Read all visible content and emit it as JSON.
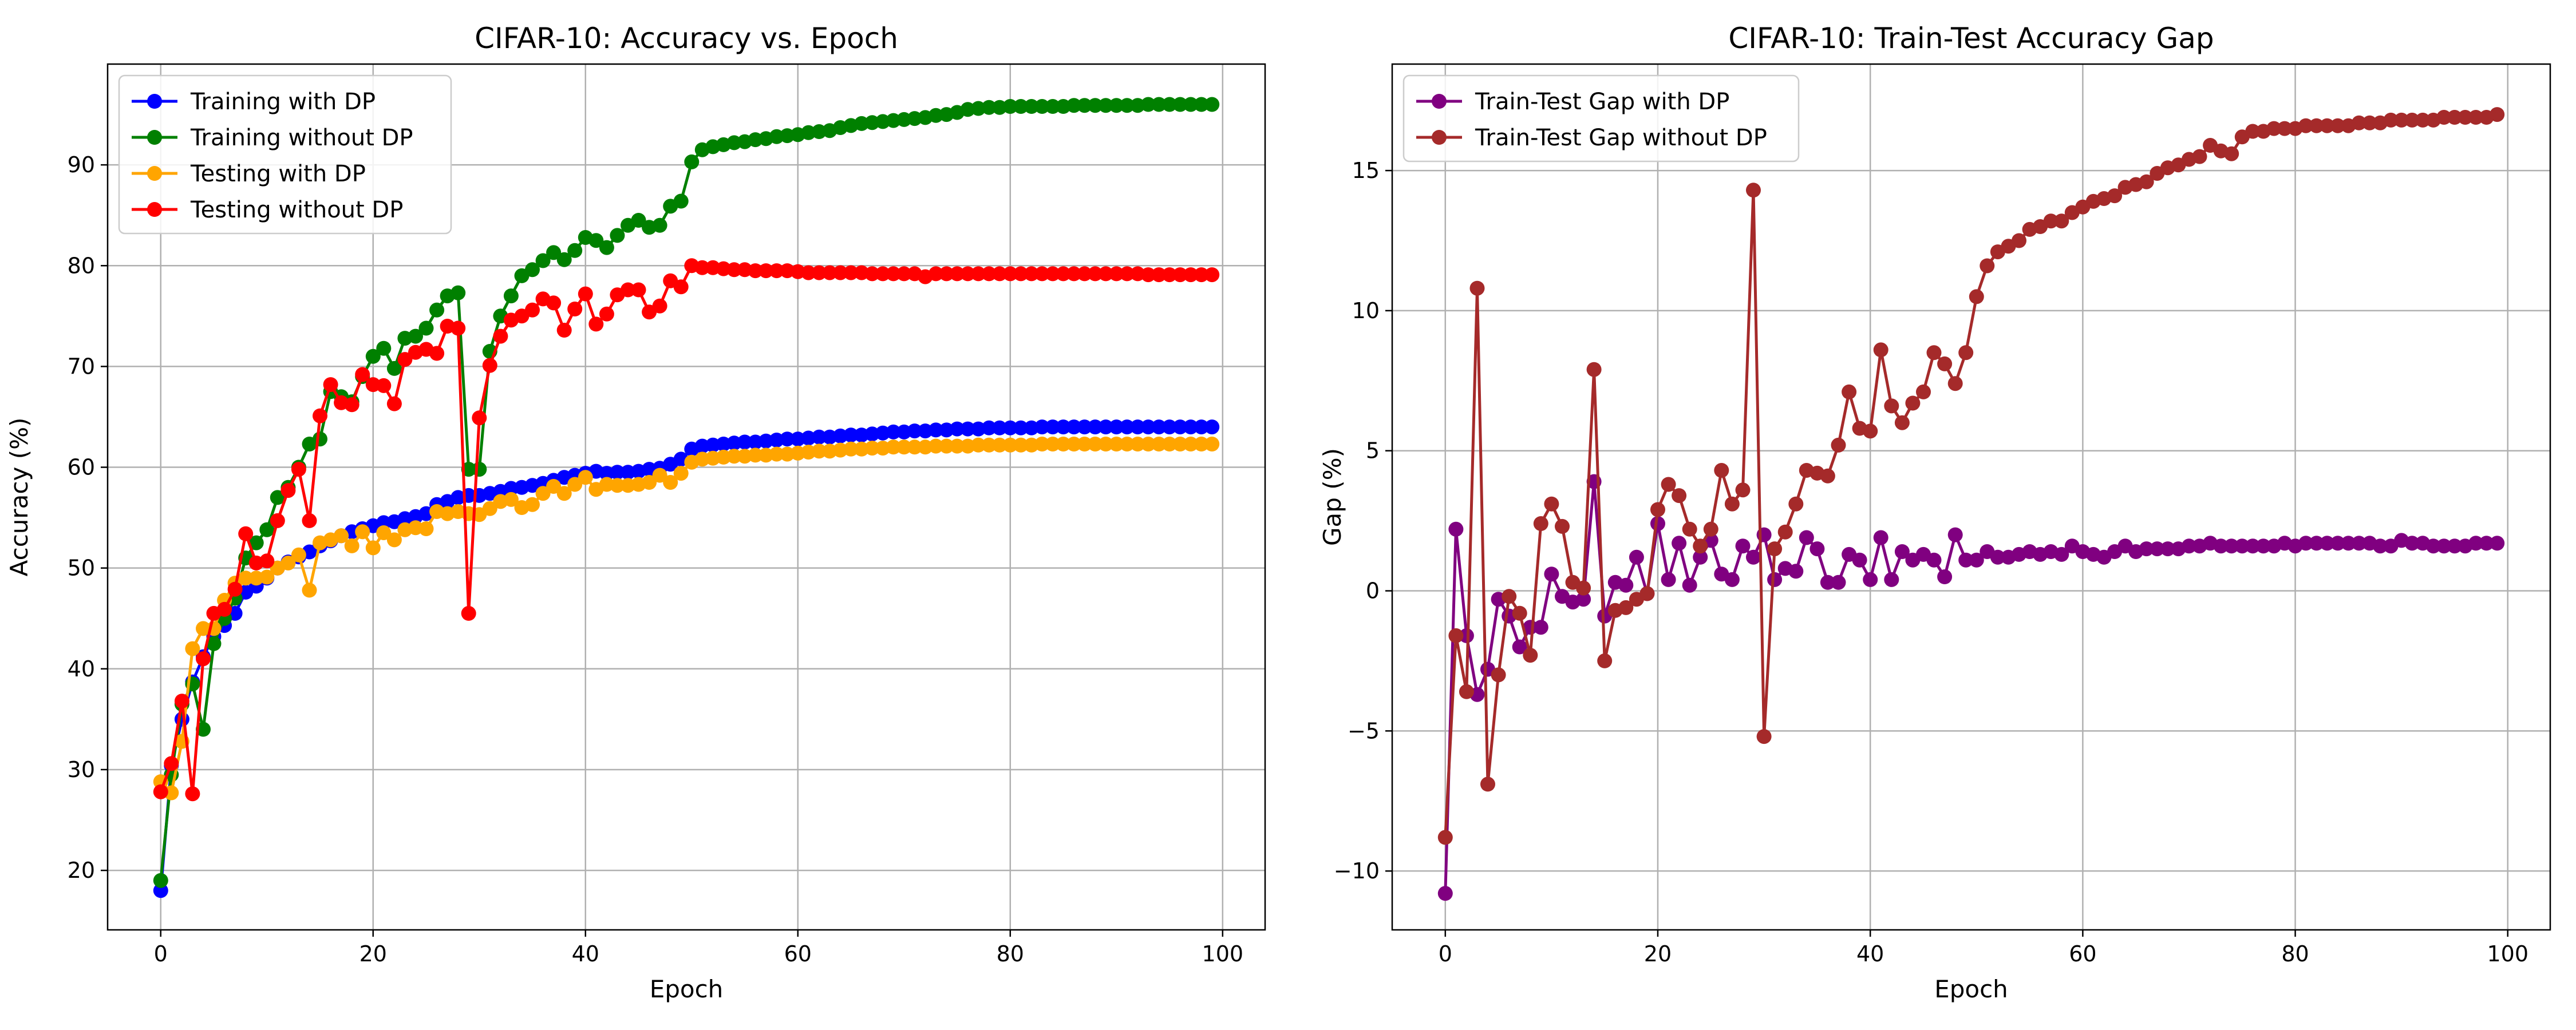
{
  "chart_data": [
    {
      "type": "line",
      "title": "CIFAR-10: Accuracy vs. Epoch",
      "xlabel": "Epoch",
      "ylabel": "Accuracy (%)",
      "xlim": [
        -5,
        104
      ],
      "ylim": [
        14.1,
        100
      ],
      "xticks": [
        0,
        20,
        40,
        60,
        80,
        100
      ],
      "yticks": [
        20,
        30,
        40,
        50,
        60,
        70,
        80,
        90
      ],
      "grid": true,
      "legend_position": "top-left",
      "marker": "circle",
      "series": [
        {
          "name": "Training with DP",
          "color": "#0000ff",
          "values": [
            18.0,
            30.4,
            35.0,
            38.7,
            41.2,
            43.2,
            44.3,
            45.5,
            47.6,
            48.2,
            49.0,
            50.0,
            50.6,
            51.1,
            51.6,
            52.2,
            52.7,
            53.2,
            53.6,
            53.9,
            54.2,
            54.5,
            54.6,
            54.9,
            55.1,
            55.4,
            56.3,
            56.6,
            57.0,
            57.2,
            57.2,
            57.4,
            57.6,
            57.9,
            58.0,
            58.2,
            58.4,
            58.7,
            59.0,
            59.2,
            59.4,
            59.6,
            59.4,
            59.5,
            59.5,
            59.6,
            59.8,
            59.9,
            60.3,
            60.8,
            61.8,
            62.1,
            62.2,
            62.3,
            62.4,
            62.5,
            62.5,
            62.6,
            62.7,
            62.8,
            62.8,
            62.9,
            63.0,
            63.0,
            63.1,
            63.2,
            63.2,
            63.3,
            63.4,
            63.5,
            63.5,
            63.6,
            63.6,
            63.7,
            63.7,
            63.8,
            63.8,
            63.8,
            63.9,
            63.9,
            63.9,
            63.9,
            63.9,
            64.0,
            64.0,
            64.0,
            64.0,
            64.0,
            64.0,
            64.0,
            64.0,
            64.0,
            64.0,
            64.0,
            64.0,
            64.0,
            64.0,
            64.0,
            64.0,
            64.0
          ]
        },
        {
          "name": "Training without DP",
          "color": "#008000",
          "values": [
            19.0,
            29.5,
            36.5,
            38.5,
            34.0,
            42.5,
            45.0,
            47.0,
            51.0,
            52.5,
            53.8,
            57.0,
            58.0,
            60.0,
            62.3,
            62.8,
            67.5,
            67.0,
            66.5,
            69.0,
            71.0,
            71.8,
            69.8,
            72.8,
            73.0,
            73.8,
            75.6,
            77.0,
            77.3,
            59.8,
            59.8,
            71.5,
            75.0,
            77.0,
            79.0,
            79.6,
            80.5,
            81.3,
            80.6,
            81.5,
            82.8,
            82.5,
            81.8,
            83.0,
            84.0,
            84.5,
            83.8,
            84.0,
            85.9,
            86.4,
            90.3,
            91.5,
            91.8,
            92.0,
            92.2,
            92.3,
            92.5,
            92.6,
            92.8,
            92.9,
            93.0,
            93.2,
            93.3,
            93.4,
            93.7,
            93.9,
            94.1,
            94.2,
            94.3,
            94.4,
            94.5,
            94.6,
            94.7,
            94.9,
            95.0,
            95.2,
            95.5,
            95.6,
            95.7,
            95.7,
            95.8,
            95.8,
            95.8,
            95.8,
            95.8,
            95.8,
            95.9,
            95.9,
            95.9,
            95.9,
            95.9,
            95.9,
            95.9,
            96.0,
            96.0,
            96.0,
            96.0,
            96.0,
            96.0,
            96.0
          ]
        },
        {
          "name": "Testing with DP",
          "color": "#ffa500",
          "values": [
            28.8,
            27.7,
            32.8,
            42.0,
            44.0,
            44.0,
            46.8,
            48.5,
            49.0,
            49.0,
            49.1,
            50.0,
            50.5,
            51.3,
            47.8,
            52.5,
            52.8,
            53.2,
            52.2,
            53.6,
            52.0,
            53.5,
            52.8,
            53.8,
            54.0,
            53.9,
            55.6,
            55.4,
            55.6,
            55.4,
            55.3,
            55.9,
            56.6,
            56.8,
            56.0,
            56.3,
            57.4,
            58.1,
            57.4,
            58.3,
            59.0,
            57.8,
            58.3,
            58.2,
            58.2,
            58.3,
            58.5,
            59.2,
            58.5,
            59.4,
            60.5,
            60.8,
            60.9,
            61.0,
            61.1,
            61.1,
            61.2,
            61.2,
            61.3,
            61.3,
            61.4,
            61.5,
            61.6,
            61.6,
            61.7,
            61.8,
            61.8,
            61.9,
            61.9,
            62.0,
            62.0,
            62.0,
            62.0,
            62.1,
            62.1,
            62.1,
            62.1,
            62.2,
            62.2,
            62.2,
            62.2,
            62.2,
            62.2,
            62.3,
            62.3,
            62.3,
            62.3,
            62.3,
            62.3,
            62.3,
            62.3,
            62.3,
            62.3,
            62.3,
            62.3,
            62.3,
            62.3,
            62.3,
            62.3,
            62.3
          ]
        },
        {
          "name": "Testing without DP",
          "color": "#ff0000",
          "values": [
            27.8,
            30.6,
            36.8,
            27.6,
            41.0,
            45.5,
            45.9,
            47.9,
            53.4,
            50.5,
            50.7,
            54.7,
            57.7,
            59.8,
            54.7,
            65.1,
            68.2,
            66.4,
            66.2,
            69.2,
            68.2,
            68.1,
            66.3,
            70.7,
            71.4,
            71.7,
            71.3,
            74.0,
            73.8,
            45.5,
            64.9,
            70.1,
            73.0,
            74.6,
            75.0,
            75.6,
            76.7,
            76.3,
            73.6,
            75.7,
            77.2,
            74.2,
            75.2,
            77.1,
            77.6,
            77.6,
            75.4,
            76.0,
            78.5,
            77.9,
            80.0,
            79.8,
            79.8,
            79.7,
            79.6,
            79.6,
            79.5,
            79.5,
            79.5,
            79.5,
            79.4,
            79.3,
            79.3,
            79.3,
            79.3,
            79.3,
            79.3,
            79.2,
            79.2,
            79.2,
            79.2,
            79.2,
            78.9,
            79.2,
            79.2,
            79.2,
            79.2,
            79.2,
            79.2,
            79.2,
            79.2,
            79.2,
            79.2,
            79.2,
            79.2,
            79.2,
            79.2,
            79.2,
            79.2,
            79.2,
            79.2,
            79.2,
            79.2,
            79.1,
            79.1,
            79.1,
            79.1,
            79.1,
            79.1,
            79.1
          ]
        }
      ]
    },
    {
      "type": "line",
      "title": "CIFAR-10: Train-Test Accuracy Gap",
      "xlabel": "Epoch",
      "ylabel": "Gap (%)",
      "xlim": [
        -5,
        104
      ],
      "ylim": [
        -12.1,
        18.8
      ],
      "xticks": [
        0,
        20,
        40,
        60,
        80,
        100
      ],
      "yticks": [
        -10,
        -5,
        0,
        5,
        10,
        15
      ],
      "grid": true,
      "legend_position": "top-left",
      "marker": "circle",
      "series": [
        {
          "name": "Train-Test Gap with DP",
          "color": "#800080",
          "values": [
            -10.8,
            2.2,
            -1.6,
            -3.7,
            -2.8,
            -0.3,
            -0.9,
            -2.0,
            -1.3,
            -1.3,
            0.6,
            -0.2,
            -0.4,
            -0.3,
            3.9,
            -0.9,
            0.3,
            0.2,
            1.2,
            -0.1,
            2.4,
            0.4,
            1.7,
            0.2,
            1.2,
            1.8,
            0.6,
            0.4,
            1.6,
            1.2,
            2.0,
            0.4,
            0.8,
            0.7,
            1.9,
            1.5,
            0.3,
            0.3,
            1.3,
            1.1,
            0.4,
            1.9,
            0.4,
            1.4,
            1.1,
            1.3,
            1.1,
            0.5,
            2.0,
            1.1,
            1.1,
            1.4,
            1.2,
            1.2,
            1.3,
            1.4,
            1.3,
            1.4,
            1.3,
            1.6,
            1.4,
            1.3,
            1.2,
            1.4,
            1.6,
            1.4,
            1.5,
            1.5,
            1.5,
            1.5,
            1.6,
            1.6,
            1.7,
            1.6,
            1.6,
            1.6,
            1.6,
            1.6,
            1.6,
            1.7,
            1.6,
            1.7,
            1.7,
            1.7,
            1.7,
            1.7,
            1.7,
            1.7,
            1.6,
            1.6,
            1.8,
            1.7,
            1.7,
            1.6,
            1.6,
            1.6,
            1.6,
            1.7,
            1.7,
            1.7
          ]
        },
        {
          "name": "Train-Test Gap without DP",
          "color": "#a52a2a",
          "values": [
            -8.8,
            -1.6,
            -3.6,
            10.8,
            -6.9,
            -3.0,
            -0.2,
            -0.8,
            -2.3,
            2.4,
            3.1,
            2.3,
            0.3,
            0.1,
            7.9,
            -2.5,
            -0.7,
            -0.6,
            -0.3,
            -0.1,
            2.9,
            3.8,
            3.4,
            2.2,
            1.6,
            2.2,
            4.3,
            3.1,
            3.6,
            14.3,
            -5.2,
            1.5,
            2.1,
            3.1,
            4.3,
            4.2,
            4.1,
            5.2,
            7.1,
            5.8,
            5.7,
            8.6,
            6.6,
            6.0,
            6.7,
            7.1,
            8.5,
            8.1,
            7.4,
            8.5,
            10.5,
            11.6,
            12.1,
            12.3,
            12.5,
            12.9,
            13.0,
            13.2,
            13.2,
            13.5,
            13.7,
            13.9,
            14.0,
            14.1,
            14.4,
            14.5,
            14.6,
            14.9,
            15.1,
            15.2,
            15.4,
            15.5,
            15.9,
            15.7,
            15.6,
            16.2,
            16.4,
            16.4,
            16.5,
            16.5,
            16.5,
            16.6,
            16.6,
            16.6,
            16.6,
            16.6,
            16.7,
            16.7,
            16.7,
            16.8,
            16.8,
            16.8,
            16.8,
            16.8,
            16.9,
            16.9,
            16.9,
            16.9,
            16.9,
            17.0
          ]
        }
      ]
    }
  ]
}
